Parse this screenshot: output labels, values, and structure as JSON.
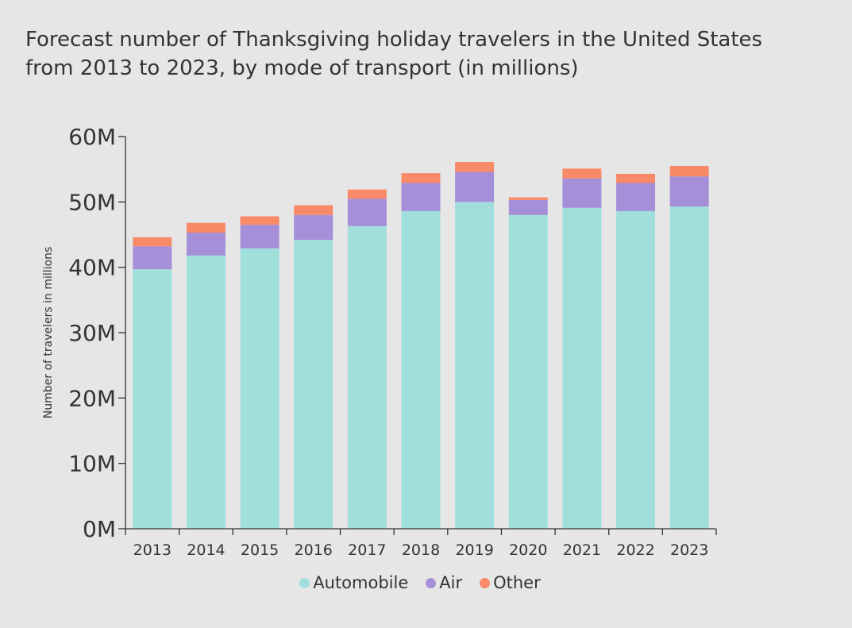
{
  "title": {
    "line1": "Forecast number of Thanksgiving holiday travelers in the United States",
    "line2": "from 2013 to 2023, by mode of transport (in millions)"
  },
  "chart_data": {
    "type": "bar",
    "stacked": true,
    "title": "Forecast number of Thanksgiving holiday travelers in the United States from 2013 to 2023, by mode of transport (in millions)",
    "xlabel": "",
    "ylabel": "Number of travelers in millions",
    "ylim": [
      0,
      60
    ],
    "yticks": [
      0,
      10,
      20,
      30,
      40,
      50,
      60
    ],
    "ytick_labels": [
      "0M",
      "10M",
      "20M",
      "30M",
      "40M",
      "50M",
      "60M"
    ],
    "categories": [
      "2013",
      "2014",
      "2015",
      "2016",
      "2017",
      "2018",
      "2019",
      "2020",
      "2021",
      "2022",
      "2023"
    ],
    "series": [
      {
        "name": "Automobile",
        "color": "#a0dfdc",
        "values": [
          39.7,
          41.8,
          42.9,
          44.2,
          46.3,
          48.6,
          50.0,
          48.0,
          49.1,
          48.6,
          49.3
        ]
      },
      {
        "name": "Air",
        "color": "#a58fd8",
        "values": [
          3.5,
          3.5,
          3.6,
          3.8,
          4.2,
          4.3,
          4.6,
          2.3,
          4.5,
          4.3,
          4.6
        ]
      },
      {
        "name": "Other",
        "color": "#f88a68",
        "values": [
          1.4,
          1.5,
          1.3,
          1.5,
          1.4,
          1.5,
          1.5,
          0.4,
          1.5,
          1.4,
          1.6
        ]
      }
    ],
    "grid": false,
    "legend": "bottom-center"
  }
}
